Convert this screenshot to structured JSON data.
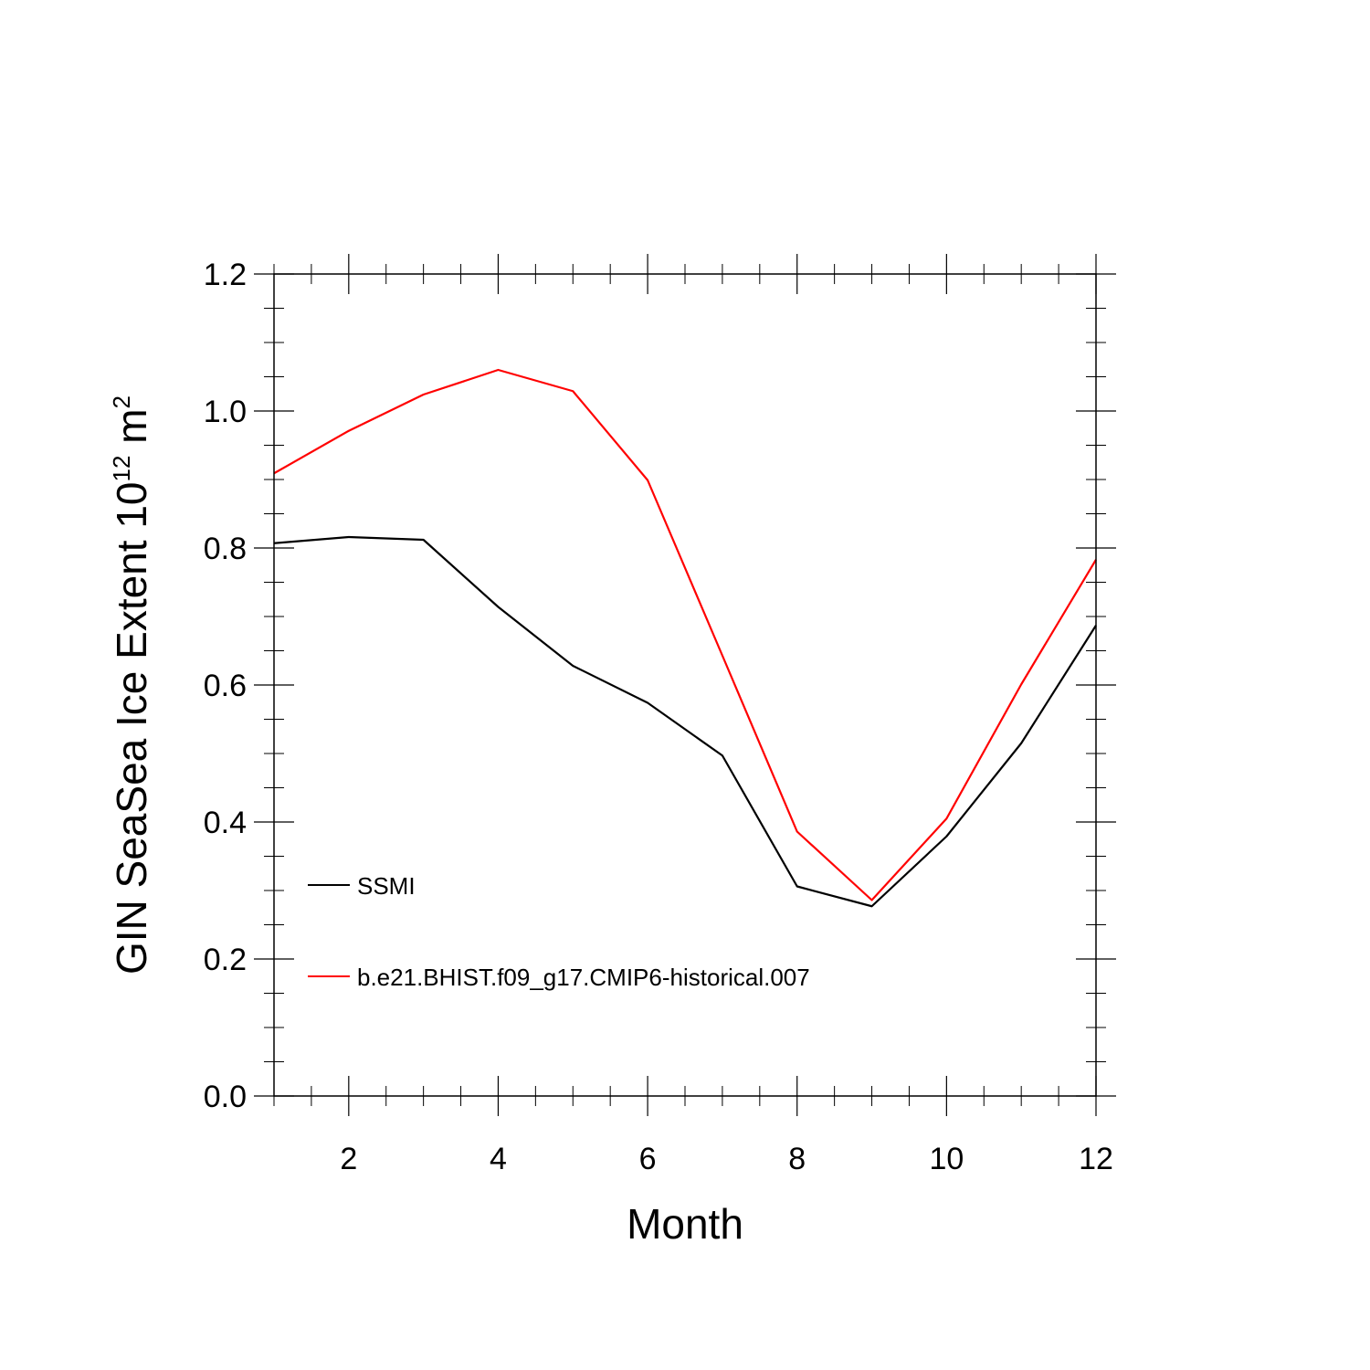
{
  "chart_data": {
    "type": "line",
    "title": "",
    "xlabel": "Month",
    "ylabel": {
      "prefix": "GIN SeaSea Ice Extent 10",
      "exponent": "12",
      "unit": " m",
      "unit_exponent": "2"
    },
    "xlim": [
      1,
      12
    ],
    "ylim": [
      0.0,
      1.2
    ],
    "x_ticks": [
      2,
      4,
      6,
      8,
      10,
      12
    ],
    "x_tick_labels": [
      "2",
      "4",
      "6",
      "8",
      "10",
      "12"
    ],
    "y_ticks": [
      0.0,
      0.2,
      0.4,
      0.6,
      0.8,
      1.0,
      1.2
    ],
    "y_tick_labels": [
      "0.0",
      "0.2",
      "0.4",
      "0.6",
      "0.8",
      "1.0",
      "1.2"
    ],
    "grid": false,
    "legend_position": "lower-left",
    "x": [
      1,
      2,
      3,
      4,
      5,
      6,
      7,
      8,
      9,
      10,
      11,
      12
    ],
    "series": [
      {
        "name": "SSMI",
        "color": "#000000",
        "values": [
          0.807,
          0.816,
          0.812,
          0.714,
          0.628,
          0.574,
          0.497,
          0.306,
          0.277,
          0.379,
          0.515,
          0.687
        ]
      },
      {
        "name": "b.e21.BHIST.f09_g17.CMIP6-historical.007",
        "color": "#ff0000",
        "values": [
          0.909,
          0.971,
          1.024,
          1.06,
          1.029,
          0.899,
          0.643,
          0.386,
          0.286,
          0.405,
          0.601,
          0.783
        ]
      }
    ]
  }
}
